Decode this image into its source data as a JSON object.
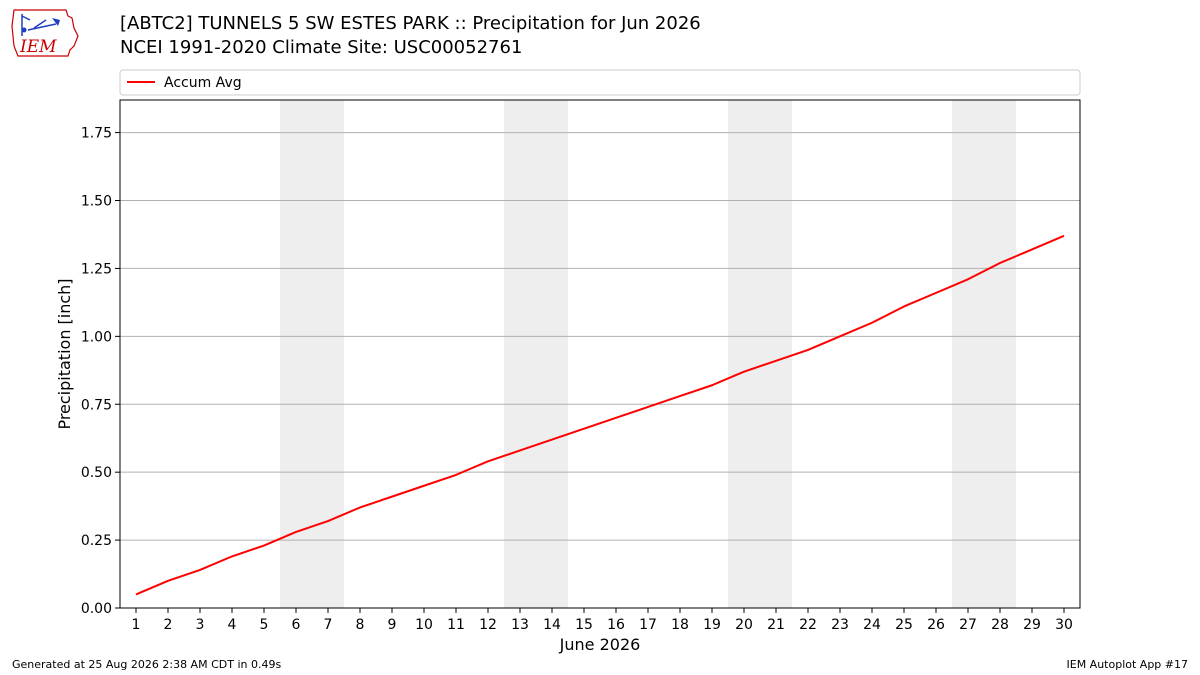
{
  "header": {
    "title_line1": "[ABTC2] TUNNELS 5 SW ESTES PARK :: Precipitation for Jun 2026",
    "title_line2": "NCEI 1991-2020 Climate Site: USC00052761",
    "logo_text": "IEM"
  },
  "footer": {
    "left": "Generated at 25 Aug 2026 2:38 AM CDT in 0.49s",
    "right": "IEM Autoplot App #17"
  },
  "colors": {
    "line": "#ff0000",
    "weekend_band": "#eeeeee",
    "grid": "#b0b0b0",
    "logo_red": "#cc0000",
    "logo_blue": "#1f3fbf"
  },
  "chart_data": {
    "type": "line",
    "xlabel": "June 2026",
    "ylabel": "Precipitation [inch]",
    "x": [
      1,
      2,
      3,
      4,
      5,
      6,
      7,
      8,
      9,
      10,
      11,
      12,
      13,
      14,
      15,
      16,
      17,
      18,
      19,
      20,
      21,
      22,
      23,
      24,
      25,
      26,
      27,
      28,
      29,
      30
    ],
    "xlim": [
      0.5,
      30.5
    ],
    "ylim": [
      0,
      1.87
    ],
    "yticks": [
      0.0,
      0.25,
      0.5,
      0.75,
      1.0,
      1.25,
      1.5,
      1.75
    ],
    "ytick_labels": [
      "0.00",
      "0.25",
      "0.50",
      "0.75",
      "1.00",
      "1.25",
      "1.50",
      "1.75"
    ],
    "grid": "horizontal",
    "legend_position": "top",
    "weekend_bands": [
      [
        6,
        7
      ],
      [
        13,
        14
      ],
      [
        20,
        21
      ],
      [
        27,
        28
      ]
    ],
    "series": [
      {
        "name": "Accum Avg",
        "color": "#ff0000",
        "values": [
          0.05,
          0.1,
          0.14,
          0.19,
          0.23,
          0.28,
          0.32,
          0.37,
          0.41,
          0.45,
          0.49,
          0.54,
          0.58,
          0.62,
          0.66,
          0.7,
          0.74,
          0.78,
          0.82,
          0.87,
          0.91,
          0.95,
          1.0,
          1.05,
          1.11,
          1.16,
          1.21,
          1.27,
          1.32,
          1.37
        ]
      }
    ]
  }
}
